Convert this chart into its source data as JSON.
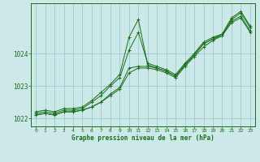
{
  "title": "Graphe pression niveau de la mer (hPa)",
  "bg_color": "#cce8e8",
  "grid_color": "#99cccc",
  "line_color": "#1a6e1a",
  "xlim": [
    -0.5,
    23.5
  ],
  "ylim": [
    1021.75,
    1025.55
  ],
  "yticks": [
    1022,
    1023,
    1024
  ],
  "xticks": [
    0,
    1,
    2,
    3,
    4,
    5,
    6,
    7,
    8,
    9,
    10,
    11,
    12,
    13,
    14,
    15,
    16,
    17,
    18,
    19,
    20,
    21,
    22,
    23
  ],
  "series": [
    {
      "x": [
        0,
        1,
        2,
        3,
        4,
        5,
        6,
        7,
        8,
        9,
        10,
        11,
        12,
        13,
        14,
        15,
        16,
        17,
        18,
        19,
        20,
        21,
        22,
        23
      ],
      "y": [
        1022.2,
        1022.25,
        1022.2,
        1022.3,
        1022.3,
        1022.35,
        1022.55,
        1022.8,
        1023.05,
        1023.35,
        1024.5,
        1025.05,
        1023.65,
        1023.55,
        1023.45,
        1023.3,
        1023.65,
        1023.95,
        1024.3,
        1024.45,
        1024.55,
        1025.05,
        1025.25,
        1024.8
      ]
    },
    {
      "x": [
        0,
        1,
        2,
        3,
        4,
        5,
        6,
        7,
        8,
        9,
        10,
        11,
        12,
        13,
        14,
        15,
        16,
        17,
        18,
        19,
        20,
        21,
        22,
        23
      ],
      "y": [
        1022.15,
        1022.2,
        1022.15,
        1022.25,
        1022.25,
        1022.3,
        1022.5,
        1022.7,
        1023.0,
        1023.25,
        1024.1,
        1024.65,
        1023.7,
        1023.6,
        1023.5,
        1023.35,
        1023.7,
        1024.0,
        1024.35,
        1024.5,
        1024.6,
        1025.1,
        1025.3,
        1024.85
      ]
    },
    {
      "x": [
        0,
        1,
        2,
        3,
        4,
        5,
        6,
        7,
        8,
        9,
        10,
        11,
        12,
        13,
        14,
        15,
        16,
        17,
        18,
        19,
        20,
        21,
        22,
        23
      ],
      "y": [
        1022.1,
        1022.15,
        1022.1,
        1022.2,
        1022.2,
        1022.25,
        1022.35,
        1022.5,
        1022.75,
        1022.95,
        1023.55,
        1023.6,
        1023.6,
        1023.55,
        1023.45,
        1023.3,
        1023.65,
        1023.95,
        1024.3,
        1024.45,
        1024.6,
        1025.0,
        1025.15,
        1024.7
      ]
    },
    {
      "x": [
        0,
        1,
        2,
        3,
        4,
        5,
        6,
        7,
        8,
        9,
        10,
        11,
        12,
        13,
        14,
        15,
        16,
        17,
        18,
        19,
        20,
        21,
        22,
        23
      ],
      "y": [
        1022.1,
        1022.15,
        1022.1,
        1022.2,
        1022.2,
        1022.25,
        1022.35,
        1022.5,
        1022.7,
        1022.9,
        1023.4,
        1023.55,
        1023.55,
        1023.5,
        1023.4,
        1023.25,
        1023.6,
        1023.9,
        1024.2,
        1024.4,
        1024.55,
        1024.95,
        1025.1,
        1024.65
      ]
    }
  ]
}
